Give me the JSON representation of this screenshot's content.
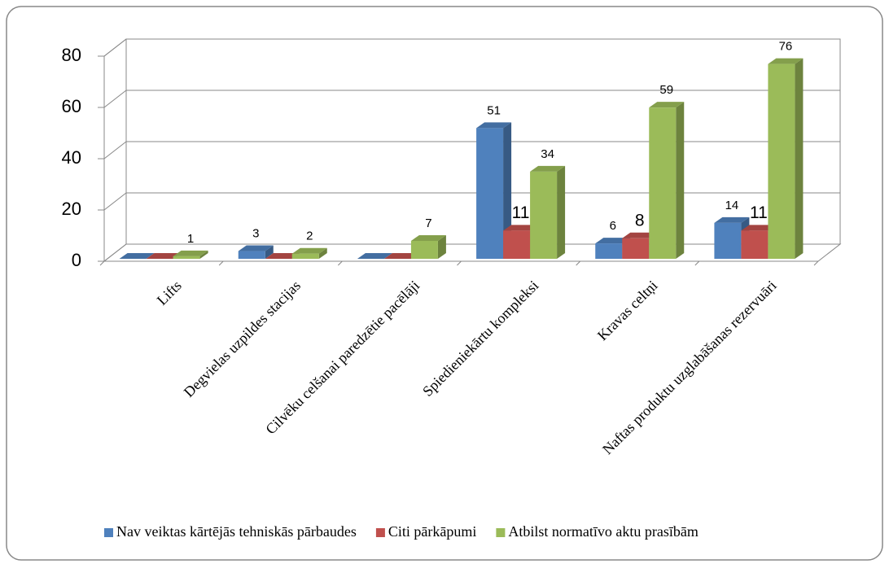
{
  "chart_data": {
    "type": "bar3d",
    "categories": [
      "Lifts",
      "Degvielas uzpildes stacijas",
      "Cilvēku celšanai paredzētie pacēlāji",
      "Spiedieniekārtu kompleksi",
      "Kravas celtņi",
      "Naftas produktu uzglabāšanas rezervuāri"
    ],
    "series": [
      {
        "name": "Nav veiktas kārtējās tehniskās pārbaudes",
        "color": "#4f81bd",
        "values": [
          0,
          3,
          0,
          51,
          6,
          14
        ]
      },
      {
        "name": "Citi pārkāpumi",
        "color": "#c0504d",
        "values": [
          0,
          0,
          0,
          11,
          8,
          11
        ]
      },
      {
        "name": "Atbilst normatīvo aktu prasībām",
        "color": "#9bbb59",
        "values": [
          1,
          2,
          7,
          34,
          59,
          76
        ]
      }
    ],
    "ylim": [
      0,
      80
    ],
    "yticks": [
      0,
      20,
      40,
      60,
      80
    ],
    "grid": true,
    "legend": "bottom"
  }
}
